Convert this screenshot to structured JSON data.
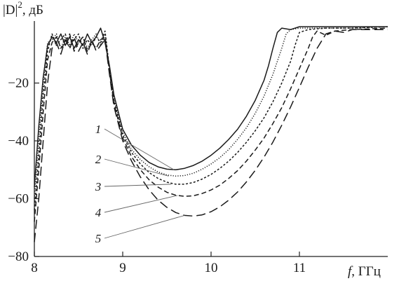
{
  "chart_data": {
    "type": "line",
    "ylabel_parts": {
      "main": "|D|",
      "sup": "2",
      "unit": ", дБ"
    },
    "xlabel_parts": {
      "main": "f",
      "unit": ", ГГц"
    },
    "xlim": [
      8,
      12
    ],
    "ylim": [
      -80,
      0
    ],
    "x_ticks": [
      8,
      9,
      10,
      11
    ],
    "y_ticks": [
      -80,
      -60,
      -40,
      -20
    ],
    "x_tick_labels": [
      "8",
      "9",
      "10",
      "11"
    ],
    "y_tick_labels": [
      "−80",
      "−60",
      "−40",
      "−20"
    ],
    "grid": false,
    "series": [
      {
        "label": "1",
        "dash": "solid",
        "points": [
          [
            8.0,
            -56
          ],
          [
            8.05,
            -35
          ],
          [
            8.1,
            -18
          ],
          [
            8.15,
            -7
          ],
          [
            8.2,
            -4
          ],
          [
            8.25,
            -6
          ],
          [
            8.3,
            -3
          ],
          [
            8.35,
            -7
          ],
          [
            8.4,
            -4
          ],
          [
            8.45,
            -8
          ],
          [
            8.5,
            -5
          ],
          [
            8.55,
            -7
          ],
          [
            8.6,
            -3
          ],
          [
            8.65,
            -6
          ],
          [
            8.7,
            -4
          ],
          [
            8.75,
            -1
          ],
          [
            8.8,
            -6
          ],
          [
            8.85,
            -14
          ],
          [
            8.9,
            -24
          ],
          [
            9.0,
            -36
          ],
          [
            9.1,
            -41.5
          ],
          [
            9.2,
            -45
          ],
          [
            9.3,
            -47.5
          ],
          [
            9.4,
            -49
          ],
          [
            9.5,
            -49.8
          ],
          [
            9.6,
            -50
          ],
          [
            9.7,
            -49.5
          ],
          [
            9.8,
            -48.5
          ],
          [
            9.9,
            -47
          ],
          [
            10.0,
            -45
          ],
          [
            10.1,
            -42.5
          ],
          [
            10.2,
            -39.5
          ],
          [
            10.3,
            -36
          ],
          [
            10.4,
            -31.5
          ],
          [
            10.5,
            -26
          ],
          [
            10.6,
            -19
          ],
          [
            10.65,
            -14
          ],
          [
            10.7,
            -8
          ],
          [
            10.75,
            -2.5
          ],
          [
            10.8,
            -1
          ],
          [
            10.9,
            -1.5
          ],
          [
            11.0,
            -0.5
          ],
          [
            11.3,
            -0.5
          ],
          [
            11.6,
            -0.5
          ],
          [
            12.0,
            -0.5
          ]
        ]
      },
      {
        "label": "2",
        "dash": "dotted",
        "points": [
          [
            8.0,
            -60
          ],
          [
            8.05,
            -40
          ],
          [
            8.1,
            -20
          ],
          [
            8.15,
            -6
          ],
          [
            8.2,
            -5
          ],
          [
            8.25,
            -3
          ],
          [
            8.3,
            -8
          ],
          [
            8.35,
            -4
          ],
          [
            8.4,
            -7
          ],
          [
            8.45,
            -3
          ],
          [
            8.5,
            -6
          ],
          [
            8.55,
            -4
          ],
          [
            8.6,
            -8
          ],
          [
            8.65,
            -5
          ],
          [
            8.7,
            -3
          ],
          [
            8.75,
            -7
          ],
          [
            8.8,
            -3
          ],
          [
            8.85,
            -15
          ],
          [
            8.9,
            -25
          ],
          [
            9.0,
            -37
          ],
          [
            9.1,
            -43
          ],
          [
            9.2,
            -46.5
          ],
          [
            9.3,
            -49
          ],
          [
            9.4,
            -50.8
          ],
          [
            9.5,
            -51.8
          ],
          [
            9.6,
            -52.2
          ],
          [
            9.7,
            -52
          ],
          [
            9.8,
            -51.2
          ],
          [
            9.9,
            -49.8
          ],
          [
            10.0,
            -48
          ],
          [
            10.1,
            -45.8
          ],
          [
            10.2,
            -43
          ],
          [
            10.3,
            -39.5
          ],
          [
            10.4,
            -35.5
          ],
          [
            10.5,
            -30.5
          ],
          [
            10.6,
            -24.5
          ],
          [
            10.7,
            -17
          ],
          [
            10.8,
            -8
          ],
          [
            10.85,
            -3
          ],
          [
            10.9,
            -1.5
          ],
          [
            11.0,
            -1
          ],
          [
            11.3,
            -1
          ],
          [
            11.6,
            -1
          ],
          [
            12.0,
            -0.5
          ]
        ]
      },
      {
        "label": "3",
        "dash": "short-dash",
        "points": [
          [
            8.0,
            -64
          ],
          [
            8.05,
            -45
          ],
          [
            8.1,
            -24
          ],
          [
            8.15,
            -9
          ],
          [
            8.2,
            -3
          ],
          [
            8.25,
            -7
          ],
          [
            8.3,
            -5
          ],
          [
            8.35,
            -3
          ],
          [
            8.4,
            -8
          ],
          [
            8.45,
            -5
          ],
          [
            8.5,
            -3
          ],
          [
            8.55,
            -8
          ],
          [
            8.6,
            -5
          ],
          [
            8.65,
            -7
          ],
          [
            8.7,
            -4
          ],
          [
            8.75,
            -6
          ],
          [
            8.8,
            -2
          ],
          [
            8.85,
            -15
          ],
          [
            8.9,
            -26
          ],
          [
            9.0,
            -38
          ],
          [
            9.1,
            -44
          ],
          [
            9.2,
            -48
          ],
          [
            9.3,
            -51
          ],
          [
            9.4,
            -53
          ],
          [
            9.5,
            -54.3
          ],
          [
            9.6,
            -55
          ],
          [
            9.7,
            -55
          ],
          [
            9.8,
            -54.4
          ],
          [
            9.9,
            -53.2
          ],
          [
            10.0,
            -51.6
          ],
          [
            10.1,
            -49.5
          ],
          [
            10.2,
            -47
          ],
          [
            10.3,
            -44
          ],
          [
            10.4,
            -40.5
          ],
          [
            10.5,
            -36.5
          ],
          [
            10.6,
            -32
          ],
          [
            10.7,
            -26.5
          ],
          [
            10.8,
            -20
          ],
          [
            10.9,
            -12.5
          ],
          [
            10.95,
            -7
          ],
          [
            11.0,
            -2.5
          ],
          [
            11.1,
            -1.5
          ],
          [
            11.3,
            -1
          ],
          [
            11.6,
            -1
          ],
          [
            12.0,
            -0.5
          ]
        ]
      },
      {
        "label": "4",
        "dash": "dash",
        "points": [
          [
            8.0,
            -68
          ],
          [
            8.05,
            -50
          ],
          [
            8.1,
            -30
          ],
          [
            8.15,
            -12
          ],
          [
            8.2,
            -6
          ],
          [
            8.25,
            -4
          ],
          [
            8.3,
            -8
          ],
          [
            8.35,
            -6
          ],
          [
            8.4,
            -3
          ],
          [
            8.45,
            -9
          ],
          [
            8.5,
            -6
          ],
          [
            8.55,
            -4
          ],
          [
            8.6,
            -9
          ],
          [
            8.65,
            -6
          ],
          [
            8.7,
            -8
          ],
          [
            8.75,
            -5
          ],
          [
            8.8,
            -4
          ],
          [
            8.85,
            -16
          ],
          [
            8.9,
            -27
          ],
          [
            9.0,
            -39
          ],
          [
            9.1,
            -45.5
          ],
          [
            9.2,
            -50
          ],
          [
            9.3,
            -53.5
          ],
          [
            9.4,
            -56
          ],
          [
            9.5,
            -57.8
          ],
          [
            9.6,
            -58.8
          ],
          [
            9.7,
            -59.2
          ],
          [
            9.8,
            -59
          ],
          [
            9.9,
            -58.2
          ],
          [
            10.0,
            -57
          ],
          [
            10.1,
            -55.3
          ],
          [
            10.2,
            -53
          ],
          [
            10.3,
            -50.3
          ],
          [
            10.4,
            -47
          ],
          [
            10.5,
            -43.2
          ],
          [
            10.6,
            -39
          ],
          [
            10.7,
            -34
          ],
          [
            10.8,
            -28.5
          ],
          [
            10.9,
            -22
          ],
          [
            11.0,
            -15
          ],
          [
            11.1,
            -8
          ],
          [
            11.15,
            -4
          ],
          [
            11.2,
            -2
          ],
          [
            11.3,
            -3.5
          ],
          [
            11.4,
            -2
          ],
          [
            11.6,
            -1.5
          ],
          [
            12.0,
            -1
          ]
        ]
      },
      {
        "label": "5",
        "dash": "long-dash",
        "points": [
          [
            8.0,
            -75
          ],
          [
            8.05,
            -60
          ],
          [
            8.1,
            -40
          ],
          [
            8.15,
            -20
          ],
          [
            8.2,
            -8
          ],
          [
            8.25,
            -6
          ],
          [
            8.3,
            -10
          ],
          [
            8.35,
            -5
          ],
          [
            8.4,
            -8
          ],
          [
            8.45,
            -4
          ],
          [
            8.5,
            -9
          ],
          [
            8.55,
            -6
          ],
          [
            8.6,
            -10
          ],
          [
            8.65,
            -5
          ],
          [
            8.7,
            -9
          ],
          [
            8.75,
            -7
          ],
          [
            8.8,
            -5
          ],
          [
            8.85,
            -17
          ],
          [
            8.9,
            -28
          ],
          [
            9.0,
            -40
          ],
          [
            9.1,
            -47
          ],
          [
            9.2,
            -52.5
          ],
          [
            9.3,
            -57
          ],
          [
            9.4,
            -60.5
          ],
          [
            9.5,
            -63
          ],
          [
            9.6,
            -64.8
          ],
          [
            9.7,
            -65.8
          ],
          [
            9.8,
            -66
          ],
          [
            9.9,
            -65.6
          ],
          [
            10.0,
            -64.5
          ],
          [
            10.1,
            -62.8
          ],
          [
            10.2,
            -60.5
          ],
          [
            10.3,
            -57.7
          ],
          [
            10.4,
            -54.2
          ],
          [
            10.5,
            -50.2
          ],
          [
            10.6,
            -45.6
          ],
          [
            10.7,
            -40.4
          ],
          [
            10.8,
            -34.6
          ],
          [
            10.9,
            -28.3
          ],
          [
            11.0,
            -21.5
          ],
          [
            11.1,
            -14.5
          ],
          [
            11.2,
            -8
          ],
          [
            11.3,
            -3
          ],
          [
            11.4,
            -2
          ],
          [
            11.5,
            -2.5
          ],
          [
            11.6,
            -1.5
          ],
          [
            12.0,
            -1.5
          ]
        ]
      }
    ],
    "callouts": [
      {
        "label": "1",
        "points_to": [
          9.58,
          -50.0
        ]
      },
      {
        "label": "2",
        "points_to": [
          9.52,
          -52.2
        ]
      },
      {
        "label": "3",
        "points_to": [
          9.55,
          -55.0
        ]
      },
      {
        "label": "4",
        "points_to": [
          9.62,
          -58.9
        ]
      },
      {
        "label": "5",
        "points_to": [
          9.7,
          -65.8
        ]
      }
    ]
  }
}
